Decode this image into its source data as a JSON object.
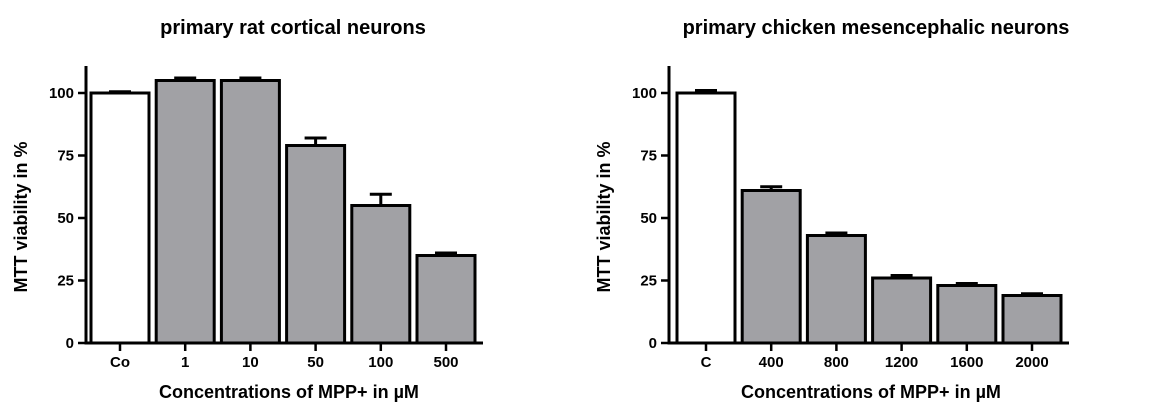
{
  "chart_data": [
    {
      "type": "bar",
      "title": "primary rat cortical neurons",
      "xlabel": "Concentrations of MPP+ in µM",
      "ylabel": "MTT viability in %",
      "categories": [
        "Co",
        "1",
        "10",
        "50",
        "100",
        "500"
      ],
      "values": [
        100,
        105,
        105,
        79,
        55,
        35
      ],
      "errors": [
        0.5,
        1.0,
        1.0,
        3.0,
        4.5,
        1.0
      ],
      "ylim": [
        0,
        110
      ],
      "yticks": [
        0,
        25,
        50,
        75,
        100
      ],
      "ytick_labels": [
        "0",
        "25",
        "50",
        "75",
        "100"
      ],
      "bar_colors": [
        "#ffffff",
        "#a1a1a5",
        "#a1a1a5",
        "#a1a1a5",
        "#a1a1a5",
        "#a1a1a5"
      ],
      "grid": false,
      "legend": "none"
    },
    {
      "type": "bar",
      "title": "primary chicken mesencephalic neurons",
      "xlabel": "Concentrations of MPP+ in µM",
      "ylabel": "MTT viability in %",
      "categories": [
        "C",
        "400",
        "800",
        "1200",
        "1600",
        "2000"
      ],
      "values": [
        100,
        61,
        43,
        26,
        23,
        19
      ],
      "errors": [
        1.0,
        1.5,
        1.0,
        1.0,
        0.8,
        0.7
      ],
      "ylim": [
        0,
        110
      ],
      "yticks": [
        0,
        25,
        50,
        75,
        100
      ],
      "ytick_labels": [
        "0",
        "25",
        "50",
        "75",
        "100"
      ],
      "bar_colors": [
        "#ffffff",
        "#a1a1a5",
        "#a1a1a5",
        "#a1a1a5",
        "#a1a1a5",
        "#a1a1a5"
      ],
      "grid": false,
      "legend": "none"
    }
  ]
}
